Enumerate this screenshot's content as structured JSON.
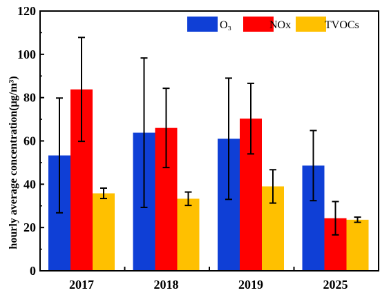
{
  "chart_data": {
    "type": "bar",
    "title": "",
    "xlabel": "",
    "ylabel": "hourly average concentration(μg/m³)",
    "ylim": [
      0,
      120
    ],
    "yticks": [
      "0",
      "20",
      "40",
      "60",
      "80",
      "100",
      "120"
    ],
    "categories": [
      "2017",
      "2018",
      "2019",
      "2025"
    ],
    "legend_position": "top-right",
    "grid": false,
    "series": [
      {
        "name": "O₃",
        "color": "#0f3fd6",
        "values": [
          53.3,
          63.8,
          61.0,
          48.6
        ],
        "error": [
          26.5,
          34.5,
          28.0,
          16.2
        ]
      },
      {
        "name": "NOx",
        "color": "#ff0000",
        "values": [
          83.8,
          66.0,
          70.3,
          24.3
        ],
        "error": [
          24.0,
          18.3,
          16.3,
          7.7
        ]
      },
      {
        "name": "TVOCs",
        "color": "#ffc000",
        "values": [
          35.8,
          33.3,
          39.0,
          23.6
        ],
        "error": [
          2.4,
          3.1,
          7.7,
          1.2
        ]
      }
    ]
  }
}
